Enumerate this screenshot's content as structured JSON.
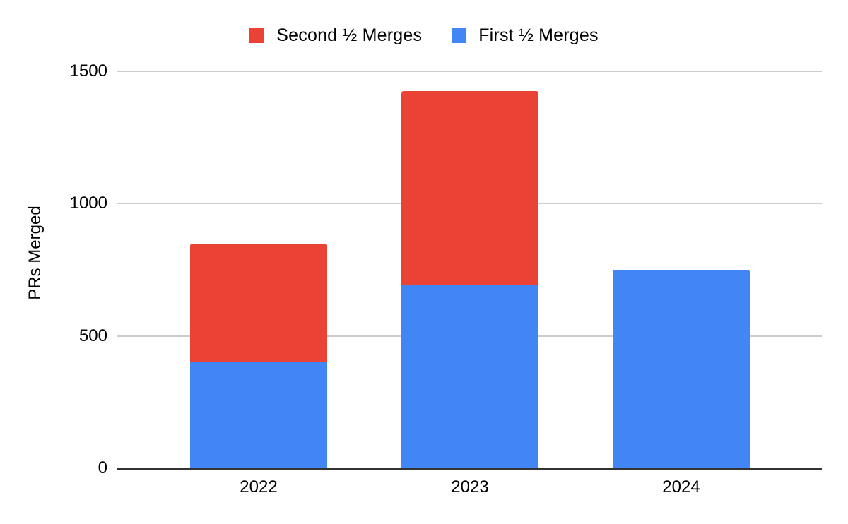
{
  "chart_data": {
    "type": "bar",
    "stacked": true,
    "title": "",
    "categories": [
      "2022",
      "2023",
      "2024"
    ],
    "series": [
      {
        "name": "First ½ Merges",
        "color": "#4285F4",
        "values": [
          405,
          695,
          750
        ]
      },
      {
        "name": "Second ½ Merges",
        "color": "#EA4335",
        "values": [
          445,
          730,
          0
        ]
      }
    ],
    "totals": [
      850,
      1425,
      750
    ],
    "xlabel": "",
    "ylabel": "PRs Merged",
    "ylim": [
      0,
      1500
    ],
    "yticks": [
      0,
      500,
      1000,
      1500
    ],
    "grid": true,
    "legend_position": "top"
  },
  "legend": {
    "items": [
      {
        "label": "Second ½ Merges",
        "color": "#EA4335"
      },
      {
        "label": "First ½ Merges",
        "color": "#4285F4"
      }
    ]
  },
  "colors": {
    "background": "#FFFFFF",
    "gridline": "#CCCCCC",
    "axis_line": "#333333",
    "text": "#000000"
  }
}
